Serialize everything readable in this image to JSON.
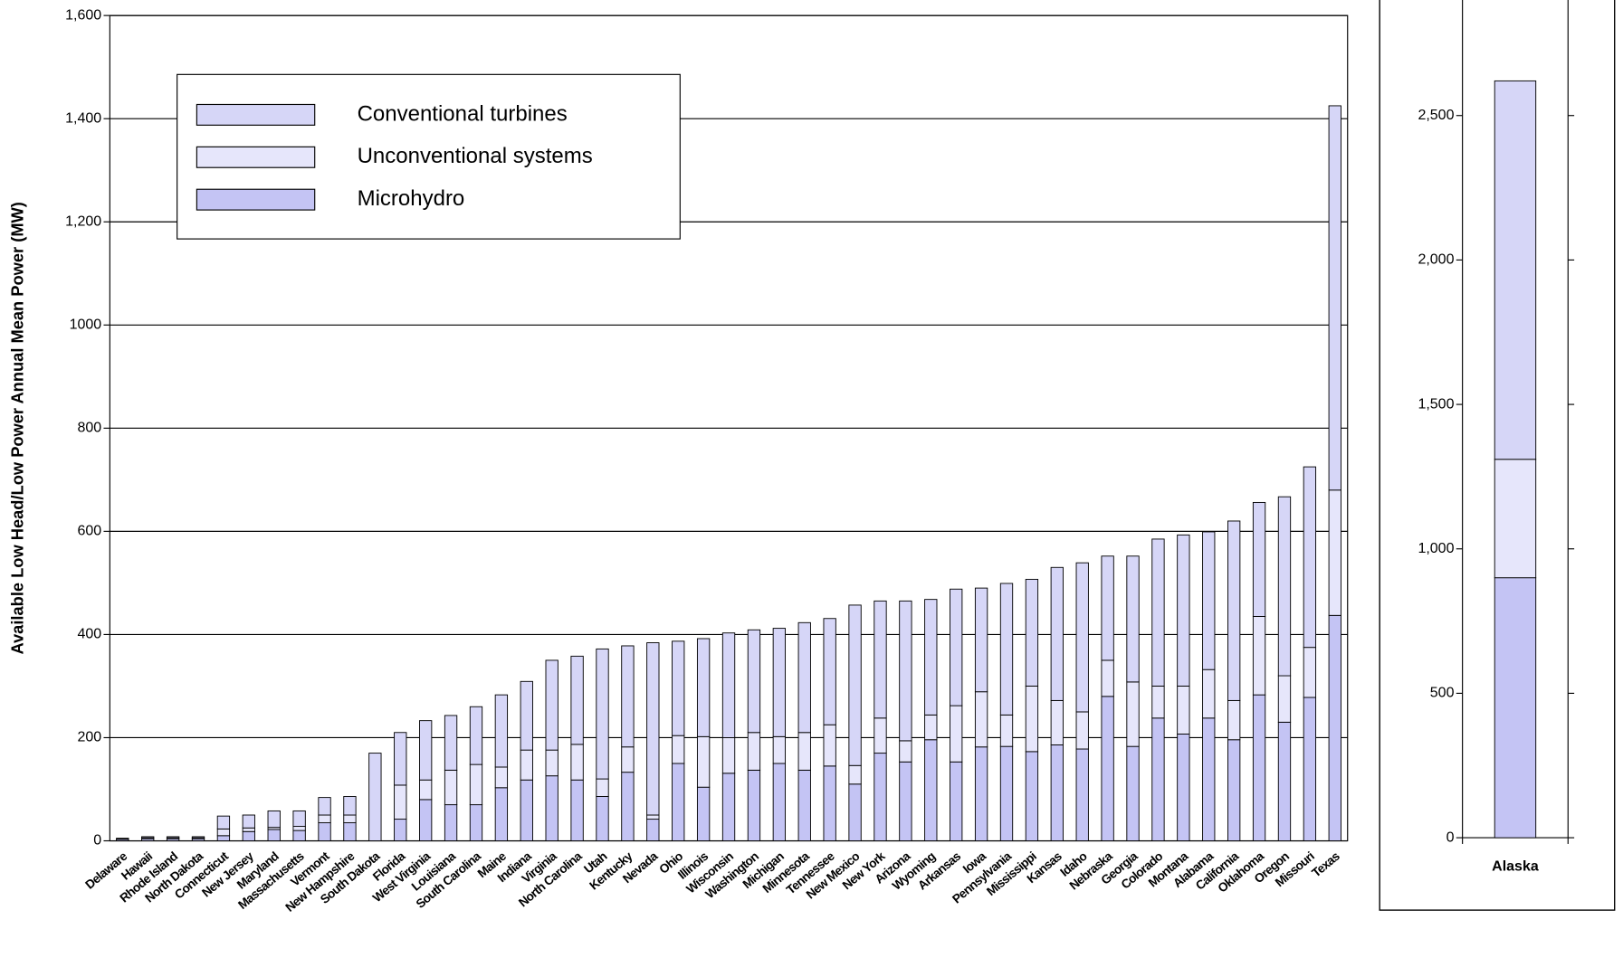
{
  "chart_data": [
    {
      "type": "stacked-bar",
      "y_label": "Available Low Head/Low Power Annual Mean Power (MW)",
      "categories": [
        "Delaware",
        "Hawaii",
        "Rhode Island",
        "North Dakota",
        "Connecticut",
        "New Jersey",
        "Maryland",
        "Massachusetts",
        "Vermont",
        "New Hampshire",
        "South Dakota",
        "Florida",
        "West Virginia",
        "Louisiana",
        "South Carolina",
        "Maine",
        "Indiana",
        "Virginia",
        "North Carolina",
        "Utah",
        "Kentucky",
        "Nevada",
        "Ohio",
        "Illinois",
        "Wisconsin",
        "Washington",
        "Michigan",
        "Minnesota",
        "Tennessee",
        "New Mexico",
        "New York",
        "Arizona",
        "Wyoming",
        "Arkansas",
        "Iowa",
        "Pennsylvania",
        "Mississippi",
        "Kansas",
        "Idaho",
        "Nebraska",
        "Georgia",
        "Colorado",
        "Montana",
        "Alabama",
        "California",
        "Oklahoma",
        "Oregon",
        "Missouri",
        "Texas"
      ],
      "series": [
        {
          "name": "Microhydro",
          "color": "#c4c4f4",
          "values": [
            3,
            4,
            4,
            4,
            10,
            18,
            22,
            20,
            35,
            35,
            0,
            42,
            80,
            70,
            70,
            103,
            118,
            126,
            118,
            86,
            133,
            42,
            150,
            104,
            131,
            137,
            150,
            137,
            145,
            110,
            170,
            153,
            196,
            153,
            182,
            183,
            173,
            186,
            178,
            280,
            183,
            238,
            207,
            238,
            196,
            283,
            230,
            278,
            437
          ]
        },
        {
          "name": "Unconventional systems",
          "color": "#e6e6fb",
          "values": [
            1,
            2,
            2,
            2,
            13,
            7,
            4,
            8,
            15,
            15,
            0,
            66,
            38,
            67,
            78,
            40,
            58,
            50,
            69,
            34,
            49,
            8,
            54,
            98,
            69,
            73,
            52,
            73,
            80,
            36,
            68,
            41,
            48,
            109,
            107,
            61,
            127,
            86,
            72,
            70,
            125,
            62,
            93,
            94,
            76,
            152,
            90,
            97,
            243
          ]
        },
        {
          "name": "Conventional turbines",
          "color": "#d6d6f7",
          "values": [
            1,
            2,
            2,
            2,
            25,
            25,
            32,
            30,
            34,
            36,
            170,
            102,
            115,
            106,
            112,
            140,
            133,
            174,
            171,
            252,
            196,
            334,
            183,
            190,
            203,
            199,
            210,
            213,
            206,
            311,
            227,
            271,
            224,
            226,
            201,
            255,
            207,
            258,
            289,
            202,
            244,
            285,
            293,
            267,
            348,
            221,
            347,
            350,
            745
          ]
        }
      ],
      "ylim": [
        0,
        1600
      ],
      "yticks": [
        0,
        200,
        400,
        600,
        800,
        1000,
        {
          "value": 1200,
          "label": "1,200"
        },
        {
          "value": 1400,
          "label": "1,400"
        },
        {
          "value": 1600,
          "label": "1,600"
        }
      ],
      "grid": true,
      "legend": "top-left"
    },
    {
      "type": "stacked-bar",
      "categories": [
        "Alaska"
      ],
      "series": [
        {
          "color": "#c4c4f4",
          "values": [
            900
          ]
        },
        {
          "color": "#e6e6fb",
          "values": [
            410
          ]
        },
        {
          "color": "#d6d6f7",
          "values": [
            1310
          ]
        }
      ],
      "ylim": [
        0,
        2900
      ],
      "yticks": [
        0,
        500,
        {
          "value": 1000,
          "label": "1,000"
        },
        {
          "value": 1500,
          "label": "1,500"
        },
        {
          "value": 2000,
          "label": "2,000"
        },
        {
          "value": 2500,
          "label": "2,500"
        }
      ],
      "grid": false
    }
  ]
}
